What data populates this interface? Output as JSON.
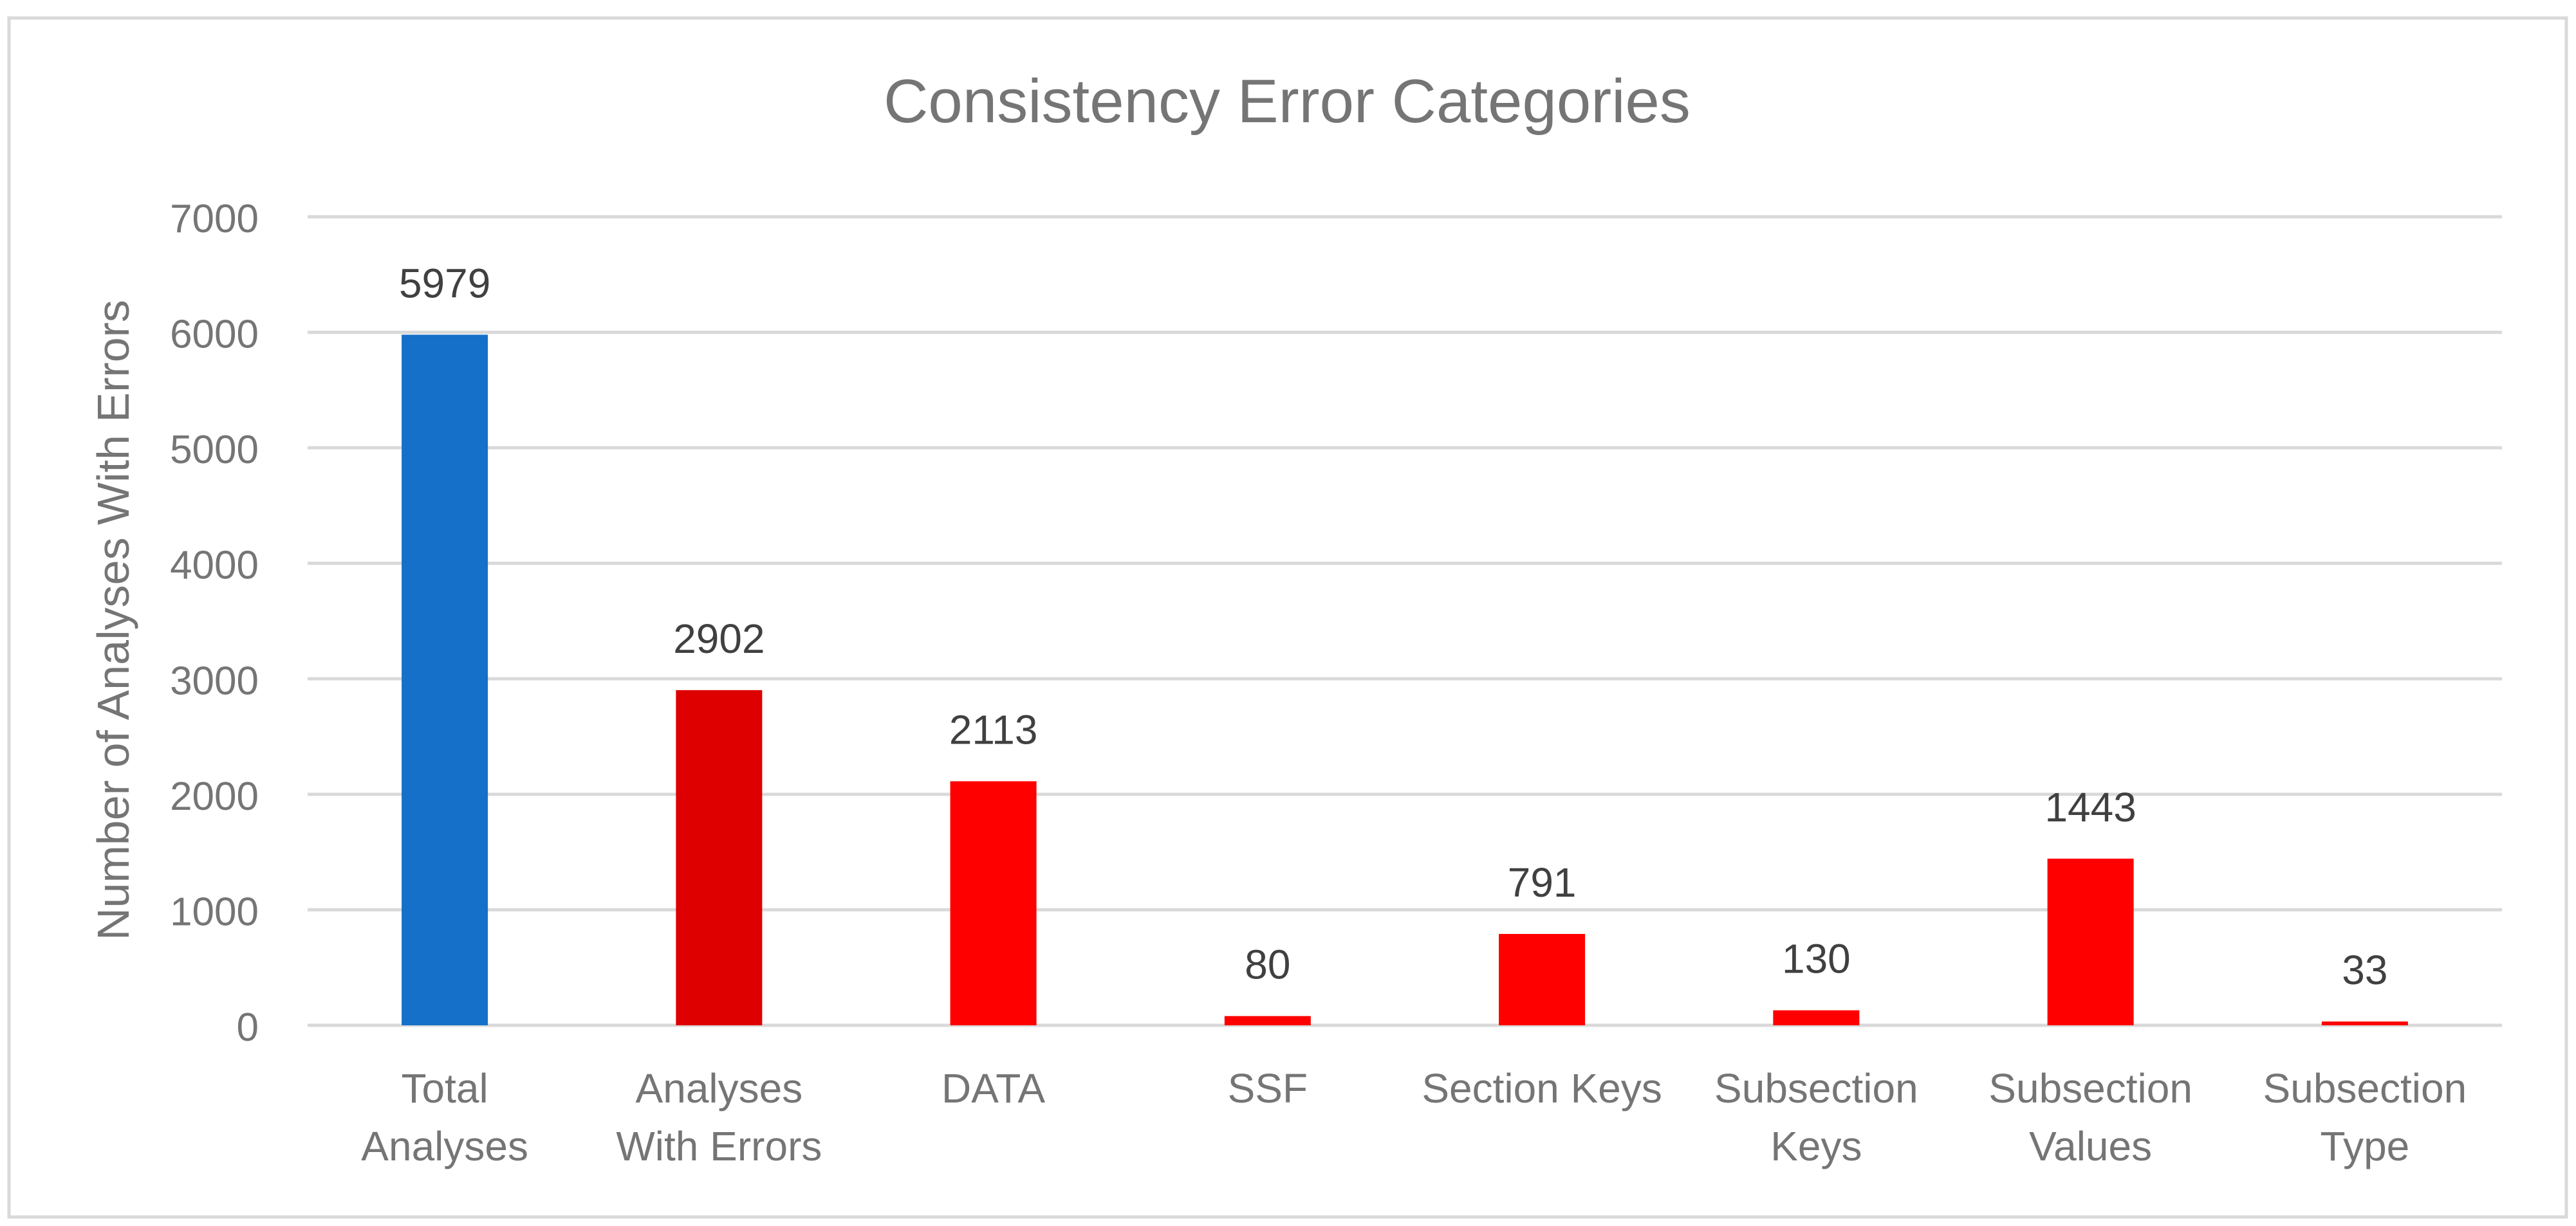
{
  "chart_data": {
    "type": "bar",
    "title": "Consistency Error Categories",
    "ylabel": "Number of Analyses With Errors",
    "xlabel": "",
    "ylim": [
      0,
      7000
    ],
    "yticks": [
      0,
      1000,
      2000,
      3000,
      4000,
      5000,
      6000,
      7000
    ],
    "grid": true,
    "legend": "none",
    "categories": [
      [
        "Total",
        "Analyses"
      ],
      [
        "Analyses",
        "With Errors"
      ],
      [
        "DATA"
      ],
      [
        "SSF"
      ],
      [
        "Section Keys"
      ],
      [
        "Subsection",
        "Keys"
      ],
      [
        "Subsection",
        "Values"
      ],
      [
        "Subsection",
        "Type"
      ]
    ],
    "values": [
      5979,
      2902,
      2113,
      80,
      791,
      130,
      1443,
      33
    ],
    "data_labels": [
      "5979",
      "2902",
      "2113",
      "80",
      "791",
      "130",
      "1443",
      "33"
    ],
    "colors": [
      "#1470C8",
      "#DE0000",
      "#FF0000",
      "#FF0000",
      "#FF0000",
      "#FF0000",
      "#FF0000",
      "#FF0000"
    ]
  }
}
